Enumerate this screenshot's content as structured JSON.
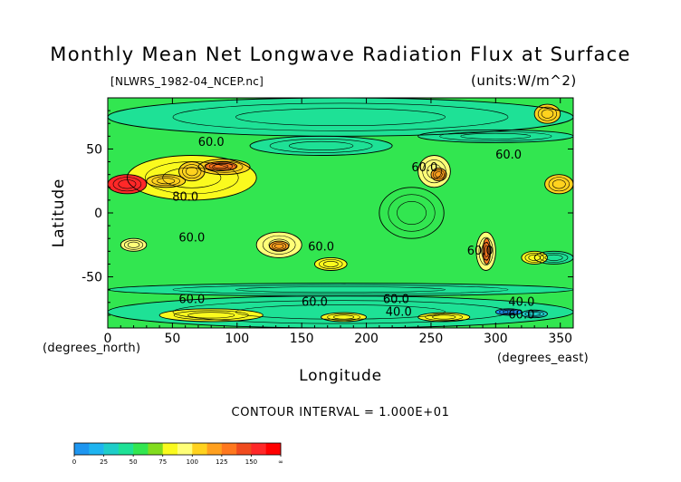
{
  "chart_data": {
    "type": "heatmap",
    "title": "Monthly Mean Net Longwave Radiation Flux at Surface",
    "source_label": "[NLWRS_1982-04_NCEP.nc]",
    "units_label": "(units:W/m^2)",
    "xlabel": "Longitude",
    "ylabel": "Latitude",
    "x_unit_label": "(degrees_east)",
    "y_unit_label": "(degrees_north)",
    "xlim": [
      0,
      360
    ],
    "ylim": [
      -90,
      90
    ],
    "x_ticks": [
      "0",
      "50",
      "100",
      "150",
      "200",
      "250",
      "300",
      "350"
    ],
    "x_tick_values": [
      0,
      50,
      100,
      150,
      200,
      250,
      300,
      350
    ],
    "y_ticks": [
      "50",
      "0",
      "-50"
    ],
    "y_tick_values": [
      50,
      0,
      -50
    ],
    "contour_interval_text": "CONTOUR INTERVAL = 1.000E+01",
    "contour_labels": [
      {
        "text": "60.0",
        "x": 80,
        "y": 55
      },
      {
        "text": "60.0",
        "x": 245,
        "y": 35
      },
      {
        "text": "80.0",
        "x": 60,
        "y": 12
      },
      {
        "text": "60.0",
        "x": 65,
        "y": -20
      },
      {
        "text": "60.0",
        "x": 165,
        "y": -27
      },
      {
        "text": "60.0",
        "x": 288,
        "y": -30
      },
      {
        "text": "60.0",
        "x": 65,
        "y": -68
      },
      {
        "text": "60.0",
        "x": 160,
        "y": -70
      },
      {
        "text": "60.0",
        "x": 223,
        "y": -68
      },
      {
        "text": "40.0",
        "x": 225,
        "y": -78
      },
      {
        "text": "40.0",
        "x": 320,
        "y": -70
      },
      {
        "text": "60.0",
        "x": 320,
        "y": -80
      },
      {
        "text": "60.0",
        "x": 310,
        "y": 45
      }
    ],
    "colorbar": {
      "labels": [
        "0",
        "25",
        "50",
        "75",
        "100",
        "125",
        "150",
        "∞"
      ],
      "bins": [
        {
          "from": 0,
          "to": 12.5,
          "color": "#1e96f0"
        },
        {
          "from": 12.5,
          "to": 25,
          "color": "#1eb4f0"
        },
        {
          "from": 25,
          "to": 37.5,
          "color": "#1ecdc8"
        },
        {
          "from": 37.5,
          "to": 50,
          "color": "#1ee196"
        },
        {
          "from": 50,
          "to": 62.5,
          "color": "#32e650"
        },
        {
          "from": 62.5,
          "to": 75,
          "color": "#82dc1e"
        },
        {
          "from": 75,
          "to": 87.5,
          "color": "#fafa1e"
        },
        {
          "from": 87.5,
          "to": 100,
          "color": "#ffff78"
        },
        {
          "from": 100,
          "to": 112.5,
          "color": "#ffd21e"
        },
        {
          "from": 112.5,
          "to": 125,
          "color": "#ffa01e"
        },
        {
          "from": 125,
          "to": 137.5,
          "color": "#ff781e"
        },
        {
          "from": 137.5,
          "to": 150,
          "color": "#f04b1e"
        },
        {
          "from": 150,
          "to": 162.5,
          "color": "#ff2828"
        },
        {
          "from": 162.5,
          "to": 175,
          "color": "#ff0000"
        }
      ]
    },
    "field_regions": [
      {
        "lon": [
          0,
          360
        ],
        "lat": [
          -90,
          90
        ],
        "value": 58
      },
      {
        "lon": [
          0,
          360
        ],
        "lat": [
          60,
          90
        ],
        "value": 45
      },
      {
        "lon": [
          0,
          360
        ],
        "lat": [
          -65,
          -55
        ],
        "value": 40
      },
      {
        "lon": [
          0,
          360
        ],
        "lat": [
          -90,
          -65
        ],
        "value": 45
      },
      {
        "lon": [
          110,
          220
        ],
        "lat": [
          45,
          60
        ],
        "value": 40
      },
      {
        "lon": [
          240,
          360
        ],
        "lat": [
          55,
          65
        ],
        "value": 38
      },
      {
        "lon": [
          210,
          260
        ],
        "lat": [
          -20,
          20
        ],
        "value": 50
      },
      {
        "lon": [
          330,
          360
        ],
        "lat": [
          -40,
          -30
        ],
        "value": 40
      },
      {
        "lon": [
          15,
          115
        ],
        "lat": [
          10,
          45
        ],
        "value": 78
      },
      {
        "lon": [
          0,
          30
        ],
        "lat": [
          15,
          30
        ],
        "value": 150
      },
      {
        "lon": [
          30,
          60
        ],
        "lat": [
          20,
          30
        ],
        "value": 110
      },
      {
        "lon": [
          55,
          75
        ],
        "lat": [
          25,
          40
        ],
        "value": 110
      },
      {
        "lon": [
          70,
          110
        ],
        "lat": [
          30,
          42
        ],
        "value": 100
      },
      {
        "lon": [
          75,
          100
        ],
        "lat": [
          33,
          40
        ],
        "value": 130
      },
      {
        "lon": [
          240,
          265
        ],
        "lat": [
          20,
          45
        ],
        "value": 95
      },
      {
        "lon": [
          250,
          262
        ],
        "lat": [
          25,
          35
        ],
        "value": 120
      },
      {
        "lon": [
          338,
          360
        ],
        "lat": [
          15,
          30
        ],
        "value": 110
      },
      {
        "lon": [
          115,
          150
        ],
        "lat": [
          -35,
          -15
        ],
        "value": 90
      },
      {
        "lon": [
          125,
          140
        ],
        "lat": [
          -30,
          -22
        ],
        "value": 115
      },
      {
        "lon": [
          10,
          30
        ],
        "lat": [
          -30,
          -20
        ],
        "value": 95
      },
      {
        "lon": [
          285,
          300
        ],
        "lat": [
          -45,
          -15
        ],
        "value": 95
      },
      {
        "lon": [
          290,
          296
        ],
        "lat": [
          -40,
          -20
        ],
        "value": 130
      },
      {
        "lon": [
          160,
          185
        ],
        "lat": [
          -45,
          -35
        ],
        "value": 80
      },
      {
        "lon": [
          320,
          340
        ],
        "lat": [
          -40,
          -30
        ],
        "value": 80
      },
      {
        "lon": [
          330,
          350
        ],
        "lat": [
          70,
          85
        ],
        "value": 110
      },
      {
        "lon": [
          40,
          120
        ],
        "lat": [
          -85,
          -75
        ],
        "value": 80
      },
      {
        "lon": [
          165,
          200
        ],
        "lat": [
          -85,
          -78
        ],
        "value": 85
      },
      {
        "lon": [
          240,
          280
        ],
        "lat": [
          -85,
          -78
        ],
        "value": 80
      },
      {
        "lon": [
          300,
          320
        ],
        "lat": [
          -80,
          -75
        ],
        "value": 10
      },
      {
        "lon": [
          320,
          340
        ],
        "lat": [
          -82,
          -76
        ],
        "value": 25
      }
    ]
  }
}
